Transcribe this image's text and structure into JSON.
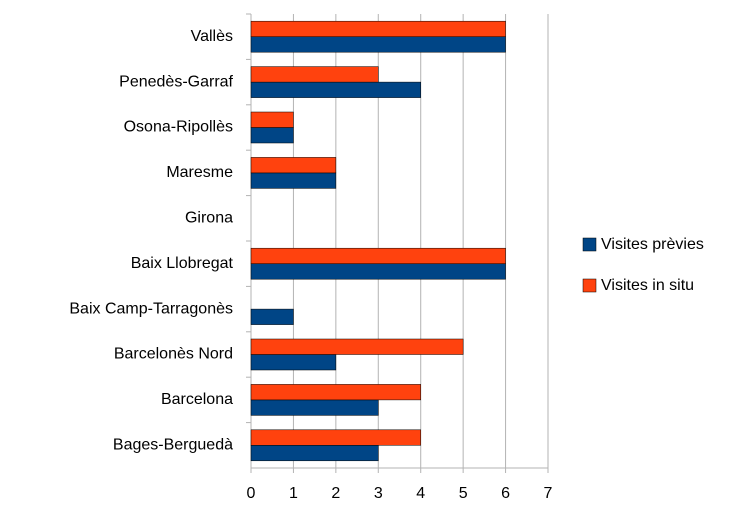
{
  "chart_data": {
    "type": "barh",
    "categories": [
      "Bages-Berguedà",
      "Barcelona",
      "Barcelonès Nord",
      "Baix Camp-Tarragonès",
      "Baix Llobregat",
      "Girona",
      "Maresme",
      "Osona-Ripollès",
      "Penedès-Garraf",
      "Vallès"
    ],
    "series": [
      {
        "name": "Visites prèvies",
        "color": "#004586",
        "values": [
          3,
          3,
          2,
          1,
          6,
          0,
          2,
          1,
          4,
          6
        ]
      },
      {
        "name": "Visites in situ",
        "color": "#ff420e",
        "values": [
          4,
          4,
          5,
          0,
          6,
          0,
          2,
          1,
          3,
          6
        ]
      }
    ],
    "xlim": [
      0,
      7
    ],
    "xticks": [
      0,
      1,
      2,
      3,
      4,
      5,
      6,
      7
    ],
    "grid": true,
    "legend": "right"
  }
}
